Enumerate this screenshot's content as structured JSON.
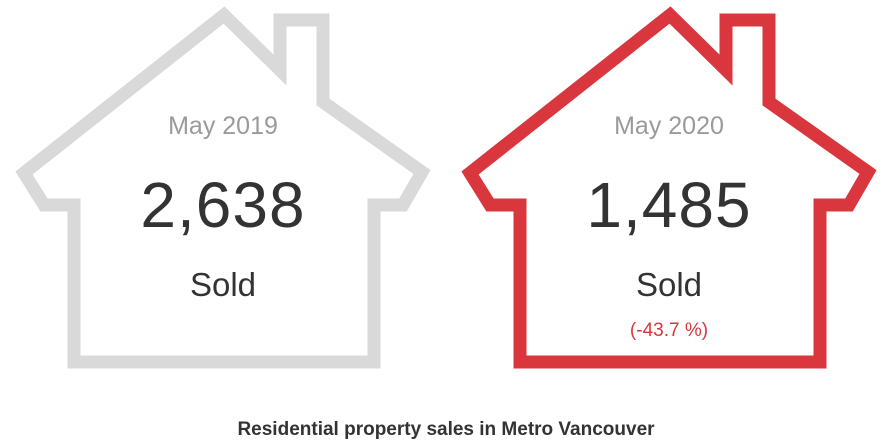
{
  "chart_data": {
    "type": "table",
    "title": "Residential property sales in Metro Vancouver",
    "items": [
      {
        "period": "May 2019",
        "value": 2638,
        "value_label": "2,638",
        "unit_label": "Sold",
        "change_label": "",
        "outline_color": "#d9d9d9"
      },
      {
        "period": "May 2020",
        "value": 1485,
        "value_label": "1,485",
        "unit_label": "Sold",
        "change_label": "(-43.7 %)",
        "outline_color": "#d9363e"
      }
    ]
  },
  "colors": {
    "text_primary": "#333333",
    "text_muted": "#9a9a9a",
    "accent_red": "#d9363e",
    "outline_gray": "#d9d9d9"
  },
  "icons": [
    "house-outline-icon",
    "house-outline-icon"
  ]
}
